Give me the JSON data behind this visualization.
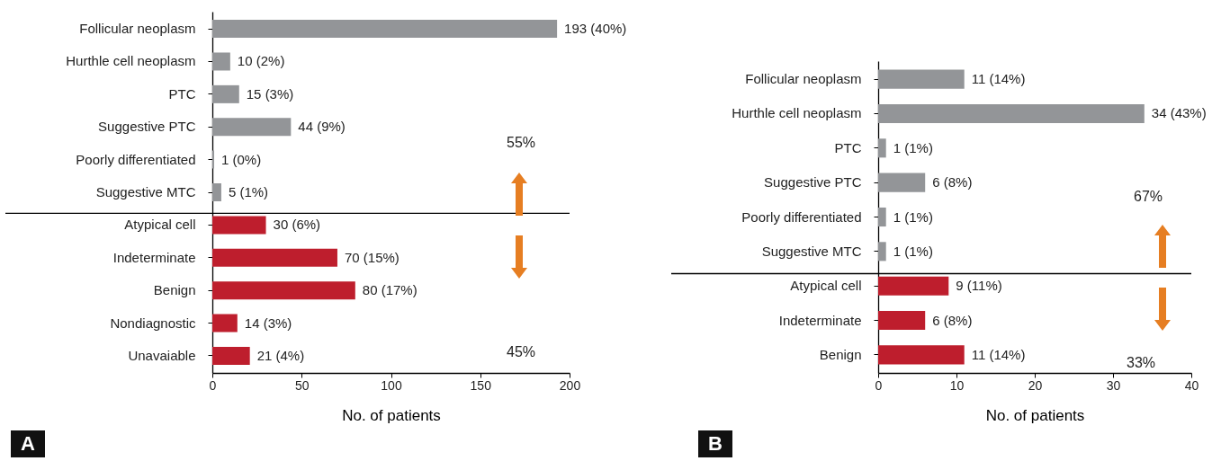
{
  "chart_data": [
    {
      "type": "bar",
      "orientation": "horizontal",
      "categories": [
        "Follicular neoplasm",
        "Hurthle cell neoplasm",
        "PTC",
        "Suggestive PTC",
        "Poorly differentiated",
        "Suggestive MTC",
        "Atypical cell",
        "Indeterminate",
        "Benign",
        "Nondiagnostic",
        "Unavaiable"
      ],
      "values": [
        193,
        10,
        15,
        44,
        1,
        5,
        30,
        70,
        80,
        14,
        21
      ],
      "colors": [
        "#939598",
        "#939598",
        "#939598",
        "#939598",
        "#939598",
        "#939598",
        "#be1e2d",
        "#be1e2d",
        "#be1e2d",
        "#be1e2d",
        "#be1e2d"
      ],
      "value_labels": [
        "193 (40%)",
        "10 (2%)",
        "15 (3%)",
        "44 (9%)",
        "1 (0%)",
        "5 (1%)",
        "30 (6%)",
        "70 (15%)",
        "80 (17%)",
        "14 (3%)",
        "21 (4%)"
      ],
      "xlim": [
        0,
        200
      ],
      "xticks": [
        0,
        50,
        100,
        150,
        200
      ],
      "xlabel": "No. of patients",
      "grid": false,
      "ref_lines": [
        {
          "axis": "y",
          "value": "Atypical cell",
          "color": "#000000"
        }
      ],
      "annotations": [
        "55%",
        "45%",
        "A"
      ]
    },
    {
      "type": "bar",
      "orientation": "horizontal",
      "categories": [
        "Follicular neoplasm",
        "Hurthle cell neoplasm",
        "PTC",
        "Suggestive PTC",
        "Poorly differentiated",
        "Suggestive MTC",
        "Atypical cell",
        "Indeterminate",
        "Benign"
      ],
      "values": [
        11,
        34,
        1,
        6,
        1,
        1,
        9,
        6,
        11
      ],
      "colors": [
        "#939598",
        "#939598",
        "#939598",
        "#939598",
        "#939598",
        "#939598",
        "#be1e2d",
        "#be1e2d",
        "#be1e2d"
      ],
      "value_labels": [
        "11 (14%)",
        "34 (43%)",
        "1 (1%)",
        "6 (8%)",
        "1 (1%)",
        "1 (1%)",
        "9 (11%)",
        "6 (8%)",
        "11 (14%)"
      ],
      "xlim": [
        0,
        40
      ],
      "xticks": [
        0,
        10,
        20,
        30,
        40
      ],
      "xlabel": "No. of patients",
      "grid": false,
      "ref_lines": [
        {
          "axis": "y",
          "value": "Atypical cell",
          "color": "#000000"
        }
      ],
      "annotations": [
        "67%",
        "33%",
        "B"
      ]
    }
  ]
}
